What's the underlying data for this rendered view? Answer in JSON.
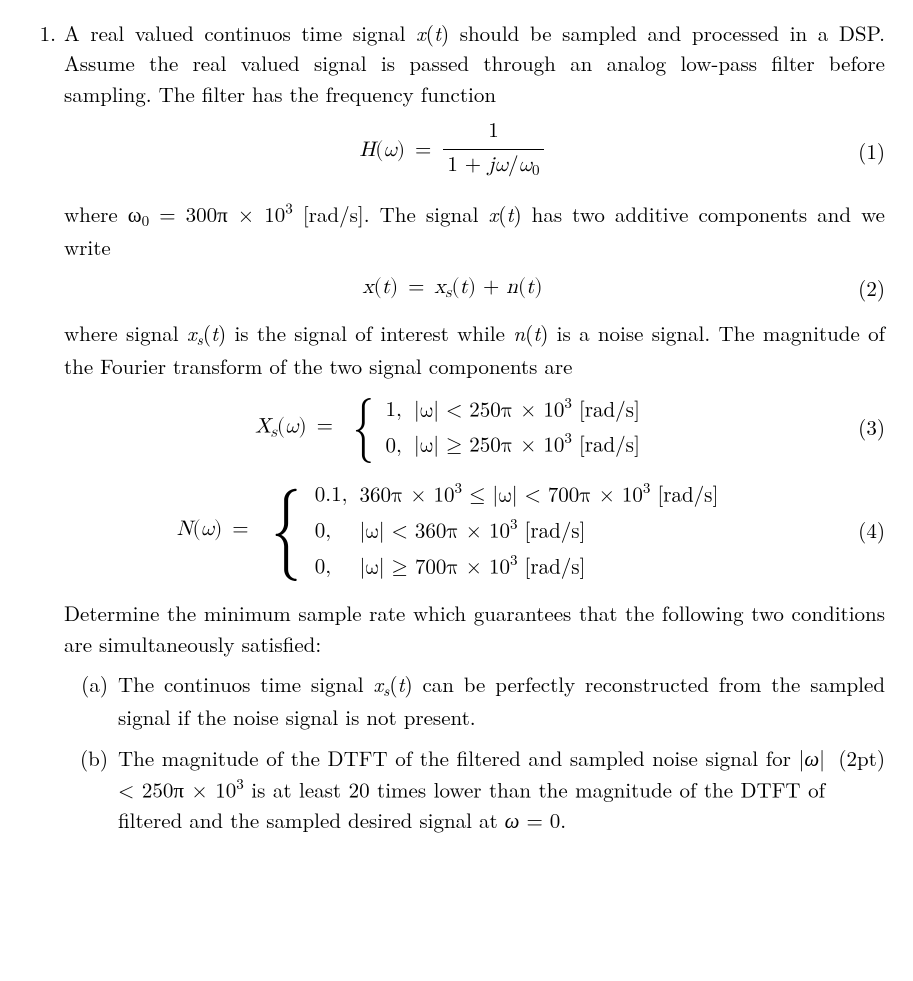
{
  "typography": {
    "font_family": "Latin Modern Roman / CMU Serif",
    "font_size_pt": 16,
    "color": "#000000",
    "background": "#ffffff",
    "align": "justify"
  },
  "problem_number": "1.",
  "paragraphs": {
    "p1": "A real valued continuos time signal x(t) should be sampled and processed in a DSP. Assume the real valued signal is passed through an analog low-pass filter before sampling. The filter has the frequency function",
    "p2a": "where ω",
    "p2a_sub": "0",
    "p2b": " = 300π × 10",
    "p2b_sup": "3",
    "p2c": " [rad/s]. The signal x(t) has two additive components and we write",
    "p3a": "where signal x",
    "p3a_sub": "s",
    "p3b": "(t) is the signal of interest while n(t) is a noise signal. The magnitude of the Fourier transform of the two signal components are",
    "p4": "Determine the minimum sample rate which guarantees that the following two conditions are simultaneously satisfied:"
  },
  "equations": {
    "eq1": {
      "number": "(1)",
      "lhs_fn": "H",
      "lhs_arg": "ω",
      "frac_num": "1",
      "frac_den_pre": "1 + ",
      "frac_den_var1": "jω",
      "frac_den_slash": "/",
      "frac_den_var2": "ω",
      "frac_den_sub": "0"
    },
    "eq2": {
      "number": "(2)",
      "lhs_var": "x",
      "lhs_arg": "t",
      "rhs_a_var": "x",
      "rhs_a_sub": "s",
      "rhs_a_arg": "t",
      "plus": " + ",
      "rhs_b_var": "n",
      "rhs_b_arg": "t"
    },
    "eq3": {
      "number": "(3)",
      "lhs_fn": "X",
      "lhs_sub": "s",
      "lhs_arg": "ω",
      "rows": [
        {
          "val": "1,",
          "cond_pre": "|ω| < 250π × 10",
          "cond_sup": "3",
          "cond_post": " [rad/s]"
        },
        {
          "val": "0,",
          "cond_pre": "|ω| ≥ 250π × 10",
          "cond_sup": "3",
          "cond_post": " [rad/s]"
        }
      ]
    },
    "eq4": {
      "number": "(4)",
      "lhs_fn": "N",
      "lhs_arg": "ω",
      "rows": [
        {
          "val": "0.1,",
          "cond_pre": "360π × 10",
          "cond_sup1": "3",
          "cond_mid": " ≤ |ω| < 700π × 10",
          "cond_sup2": "3",
          "cond_post": " [rad/s]"
        },
        {
          "val": "0,",
          "cond_pre": "|ω| < 360π × 10",
          "cond_sup1": "3",
          "cond_post": " [rad/s]"
        },
        {
          "val": "0,",
          "cond_pre": "|ω| ≥ 700π × 10",
          "cond_sup1": "3",
          "cond_post": " [rad/s]"
        }
      ]
    }
  },
  "subitems": {
    "a": {
      "label": "(a)",
      "text_a": "The continuos time signal x",
      "text_a_sub": "s",
      "text_b": "(t) can be perfectly reconstructed from the sampled signal if the noise signal is not present."
    },
    "b": {
      "label": "(b)",
      "text_a": "The magnitude of the DTFT of the filtered and sampled noise signal for |ω| < 250π × 10",
      "text_a_sup": "3",
      "text_b": " is at least 20 times lower than the magnitude of the DTFT of filtered and the sampled desired signal at ω = 0.",
      "points": "(2pt)"
    }
  }
}
